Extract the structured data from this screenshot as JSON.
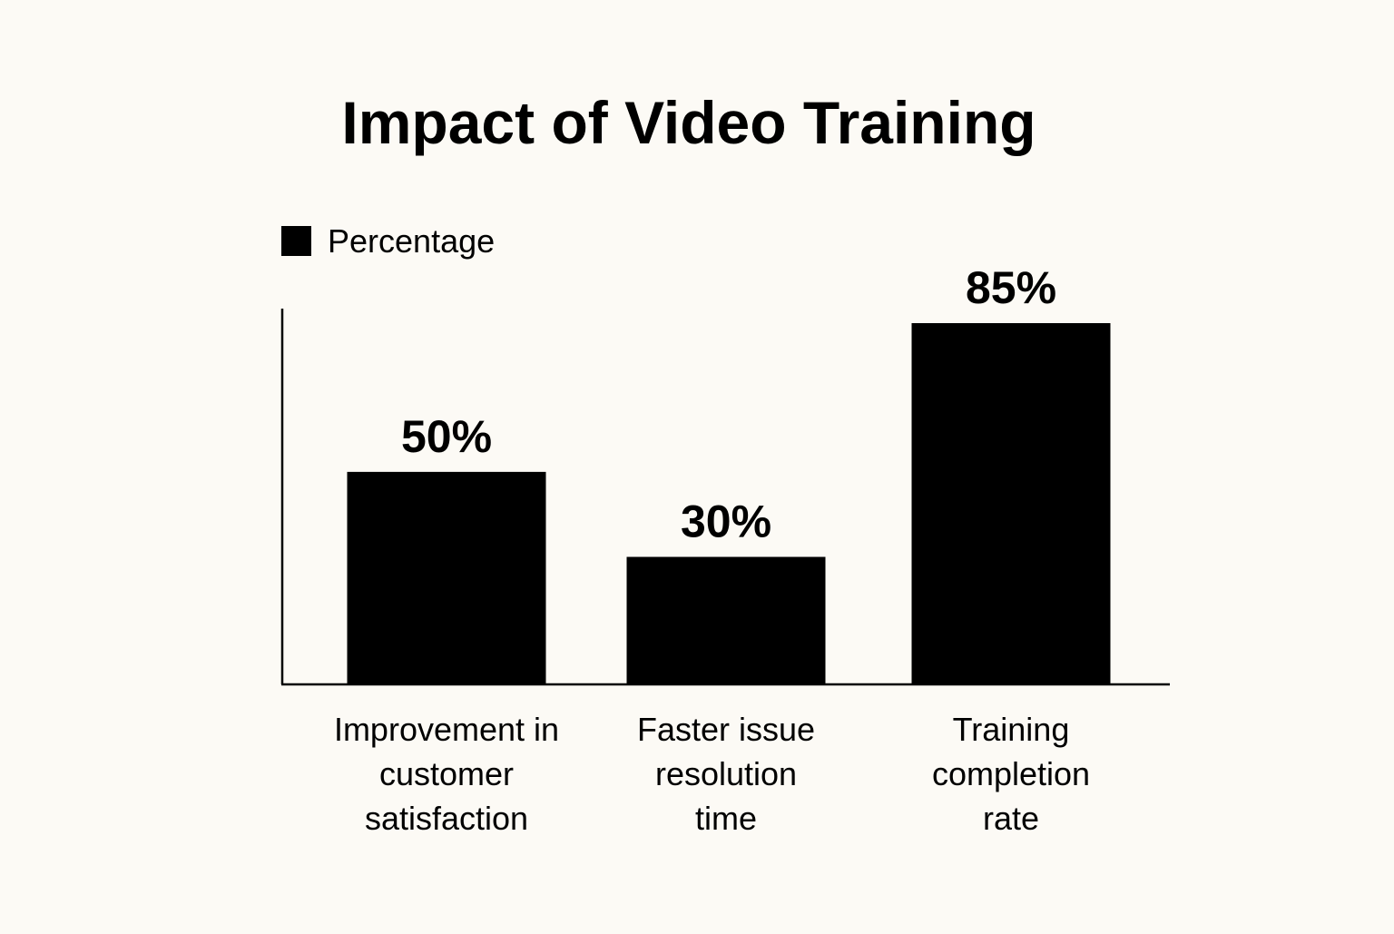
{
  "chart_data": {
    "type": "bar",
    "title": "Impact of Video Training",
    "categories": [
      [
        "Improvement in",
        "customer",
        "satisfaction"
      ],
      [
        "Faster issue",
        "resolution",
        "time"
      ],
      [
        "Training",
        "completion",
        "rate"
      ]
    ],
    "series": [
      {
        "name": "Percentage",
        "values": [
          50,
          30,
          85
        ],
        "data_labels": [
          "50%",
          "30%",
          "85%"
        ],
        "color": "#000000"
      }
    ],
    "ylim": [
      0,
      85
    ],
    "grid": false,
    "legend": "top-left",
    "background": "#fcfaf5"
  }
}
